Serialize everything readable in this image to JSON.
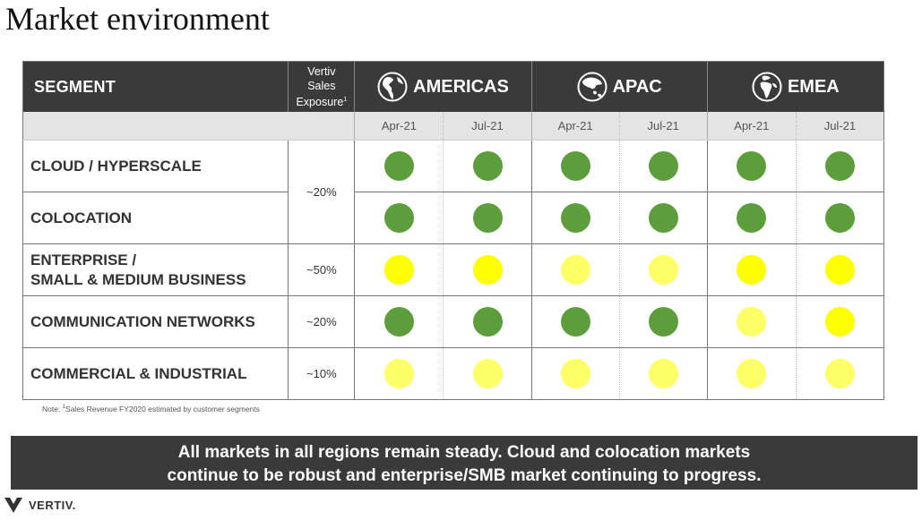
{
  "page": {
    "title": "Market environment",
    "note_prefix": "Note: ",
    "note_mark": "1",
    "note_text": "Sales Revenue FY2020 estimated by customer segments",
    "banner_line1": "All markets in all regions remain steady.  Cloud and colocation markets",
    "banner_line2": "continue to be robust and enterprise/SMB market continuing to progress.",
    "logo_text": "VERTIV."
  },
  "table": {
    "segment_header": "SEGMENT",
    "exposure_header_line1": "Vertiv",
    "exposure_header_line2": "Sales",
    "exposure_header_line3": "Exposure",
    "exposure_header_mark": "1",
    "regions": [
      {
        "name": "AMERICAS",
        "icon": "globe-americas-icon",
        "periods": [
          "Apr-21",
          "Jul-21"
        ]
      },
      {
        "name": "APAC",
        "icon": "globe-asia-icon",
        "periods": [
          "Apr-21",
          "Jul-21"
        ]
      },
      {
        "name": "EMEA",
        "icon": "globe-emea-icon",
        "periods": [
          "Apr-21",
          "Jul-21"
        ]
      }
    ],
    "status_colors": {
      "green": "#5c9e3c",
      "yellow": "#ffff00",
      "light_yellow": "#ffff66"
    },
    "rows": [
      {
        "segment_lines": [
          "CLOUD / HYPERSCALE"
        ],
        "exposure": "~20%",
        "exposure_span": 2,
        "status": [
          "green",
          "green",
          "green",
          "green",
          "green",
          "green"
        ]
      },
      {
        "segment_lines": [
          "COLOCATION"
        ],
        "exposure": null,
        "exposure_span": 0,
        "status": [
          "green",
          "green",
          "green",
          "green",
          "green",
          "green"
        ]
      },
      {
        "segment_lines": [
          "ENTERPRISE /",
          "SMALL & MEDIUM BUSINESS"
        ],
        "exposure": "~50%",
        "exposure_span": 1,
        "status": [
          "yellow",
          "yellow",
          "light_yellow",
          "light_yellow",
          "yellow",
          "yellow"
        ]
      },
      {
        "segment_lines": [
          "COMMUNICATION NETWORKS"
        ],
        "exposure": "~20%",
        "exposure_span": 1,
        "status": [
          "green",
          "green",
          "green",
          "green",
          "light_yellow",
          "yellow"
        ]
      },
      {
        "segment_lines": [
          "COMMERCIAL & INDUSTRIAL"
        ],
        "exposure": "~10%",
        "exposure_span": 1,
        "status": [
          "light_yellow",
          "light_yellow",
          "light_yellow",
          "light_yellow",
          "light_yellow",
          "light_yellow"
        ]
      }
    ]
  }
}
